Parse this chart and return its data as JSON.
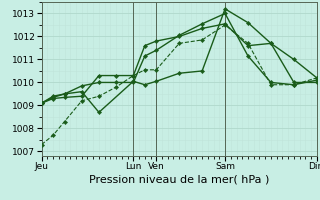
{
  "bg_color": "#c8eee4",
  "grid_major_color": "#b0d8cc",
  "grid_minor_color": "#c0e4da",
  "line_color": "#1a5c1a",
  "marker_color": "#1a5c1a",
  "xlabel": "Pression niveau de la mer( hPa )",
  "xlabel_fontsize": 8,
  "ylim": [
    1006.8,
    1013.5
  ],
  "yticks": [
    1007,
    1008,
    1009,
    1010,
    1011,
    1012,
    1013
  ],
  "day_labels": [
    "Jeu",
    "Lun",
    "Ven",
    "Sam",
    "Dim"
  ],
  "day_positions": [
    0,
    16,
    20,
    32,
    48
  ],
  "total_points": 49,
  "series": [
    {
      "x": [
        0,
        2,
        4,
        7,
        10,
        13,
        16,
        18,
        20,
        24,
        28,
        32,
        36,
        40,
        44,
        48
      ],
      "y": [
        1007.3,
        1007.7,
        1008.3,
        1009.2,
        1009.4,
        1009.8,
        1010.3,
        1010.55,
        1010.55,
        1011.7,
        1011.85,
        1012.5,
        1011.7,
        1009.9,
        1009.9,
        1010.2
      ],
      "linestyle": "--",
      "linewidth": 0.8
    },
    {
      "x": [
        0,
        2,
        4,
        7,
        10,
        16,
        18,
        20,
        24,
        28,
        32,
        36,
        40,
        44,
        48
      ],
      "y": [
        1009.1,
        1009.4,
        1009.5,
        1009.6,
        1008.7,
        1010.05,
        1009.9,
        1010.05,
        1010.4,
        1010.5,
        1013.2,
        1012.6,
        1011.7,
        1011.0,
        1010.2
      ],
      "linestyle": "-",
      "linewidth": 1.0
    },
    {
      "x": [
        0,
        2,
        4,
        7,
        10,
        13,
        16,
        18,
        20,
        24,
        28,
        32,
        36,
        40,
        44,
        48
      ],
      "y": [
        1009.1,
        1009.3,
        1009.35,
        1009.4,
        1010.3,
        1010.3,
        1010.3,
        1011.6,
        1011.8,
        1012.0,
        1012.35,
        1012.55,
        1011.6,
        1011.7,
        1010.0,
        1010.0
      ],
      "linestyle": "-",
      "linewidth": 1.0
    },
    {
      "x": [
        0,
        2,
        4,
        7,
        10,
        13,
        16,
        18,
        20,
        24,
        28,
        32,
        36,
        40,
        44,
        48
      ],
      "y": [
        1009.1,
        1009.35,
        1009.5,
        1009.85,
        1010.0,
        1010.0,
        1010.0,
        1011.15,
        1011.4,
        1012.05,
        1012.55,
        1013.0,
        1011.15,
        1010.0,
        1009.9,
        1010.1
      ],
      "linestyle": "-",
      "linewidth": 1.0
    }
  ]
}
